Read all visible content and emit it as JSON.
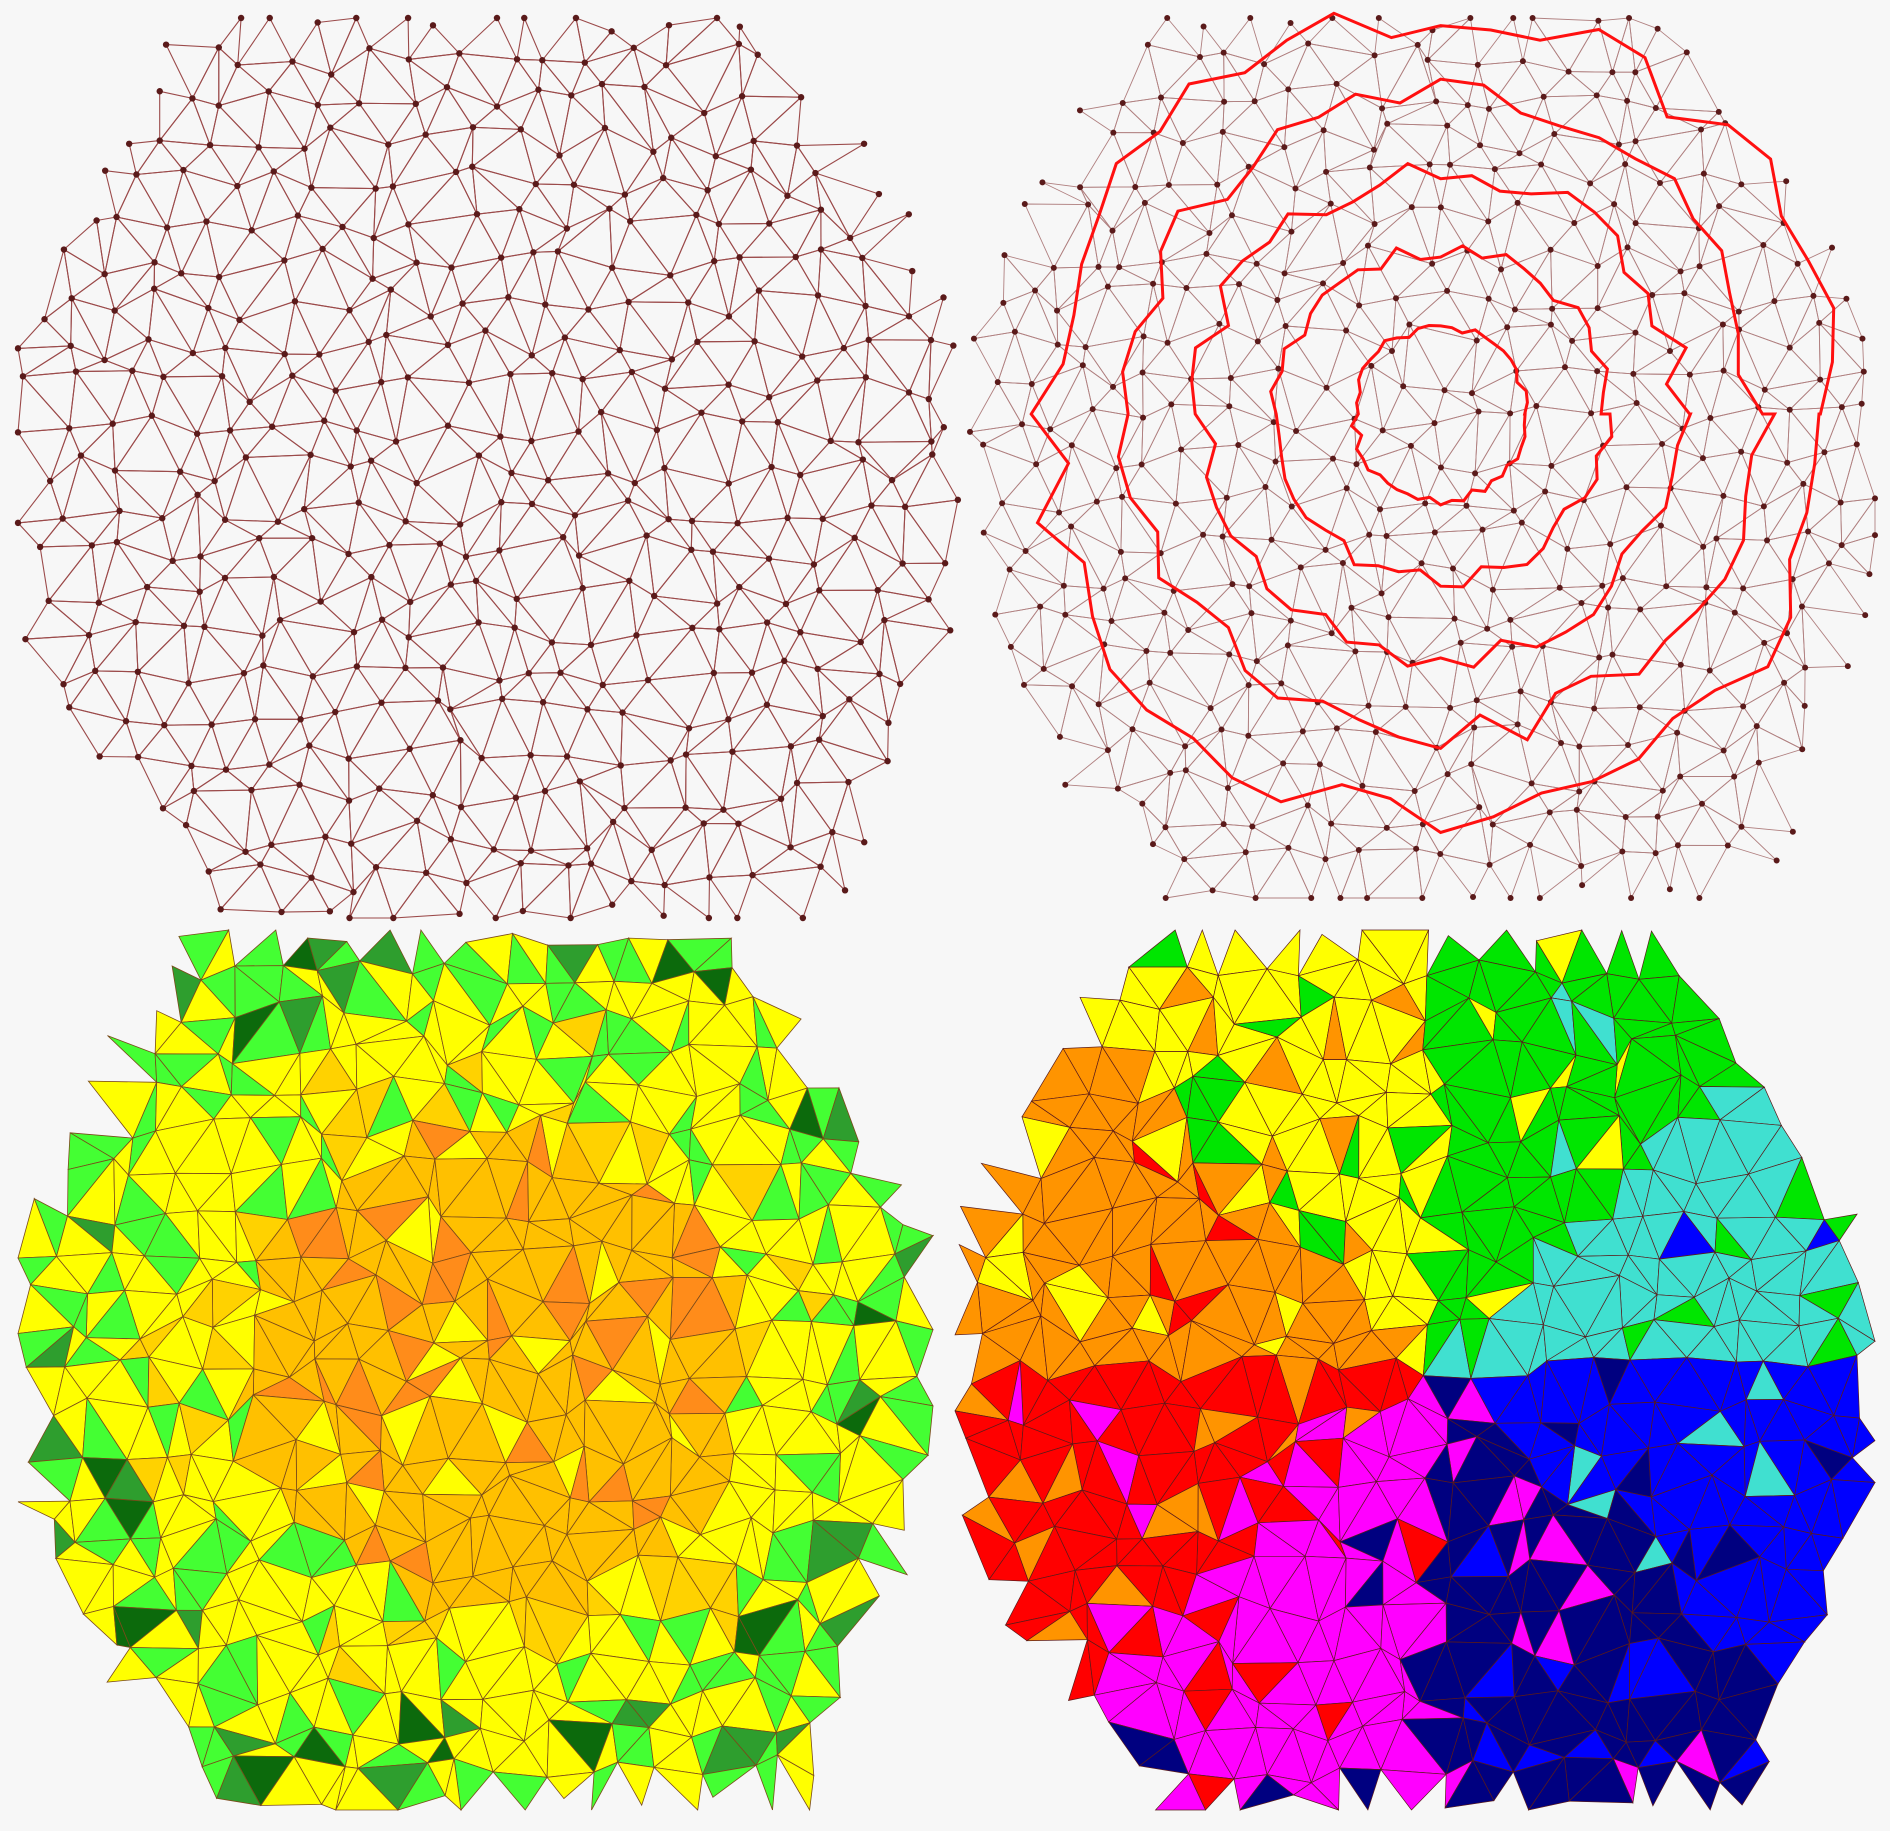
{
  "panels": [
    {
      "id": "mesh",
      "style": "wireframe",
      "edge_color": "#9b4a4a",
      "node_color": "#5a1a1a"
    },
    {
      "id": "contours",
      "style": "wireframe-with-contours",
      "edge_color": "#b08080",
      "contour_color": "#ff1010",
      "contour_count": 5
    },
    {
      "id": "level-fill",
      "style": "filled-triangles",
      "palette": [
        "#ffff00",
        "#ffd200",
        "#ffc000",
        "#ff8c1a",
        "#ff5a00",
        "#44ff33",
        "#2e9e2e",
        "#0c6a0c"
      ]
    },
    {
      "id": "partition-fill",
      "style": "filled-triangles",
      "palette": [
        "#ff00ff",
        "#ff0000",
        "#ff9400",
        "#ffff00",
        "#00e600",
        "#40e0d0",
        "#0000ff",
        "#000080"
      ]
    }
  ],
  "mesh_edge_color": "#7a2020",
  "background": "#f7f7f7"
}
